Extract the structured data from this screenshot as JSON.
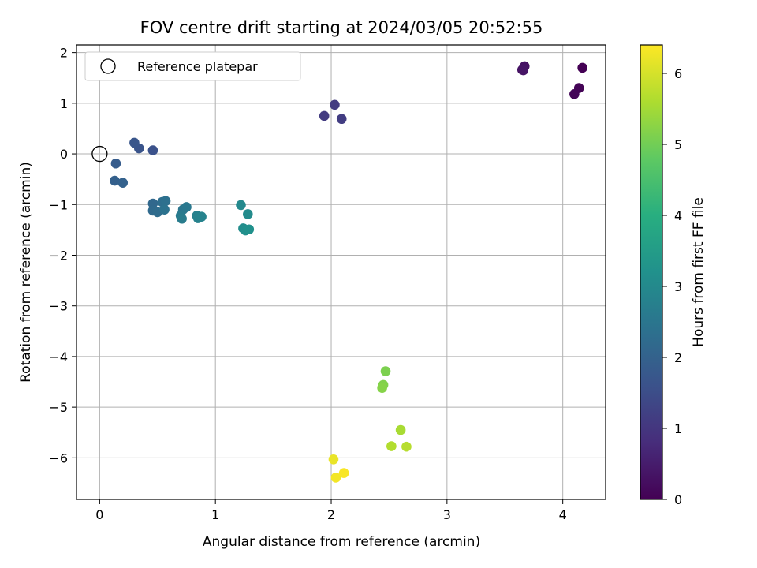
{
  "chart_data": {
    "type": "scatter",
    "title": "FOV centre drift starting at 2024/03/05 20:52:55",
    "xlabel": "Angular distance from reference (arcmin)",
    "ylabel": "Rotation from reference (arcmin)",
    "colorbar_label": "Hours from first FF file",
    "xlim": [
      -0.2,
      4.37
    ],
    "ylim": [
      -6.82,
      2.15
    ],
    "xticks": [
      0,
      1,
      2,
      3,
      4
    ],
    "yticks": [
      2,
      1,
      0,
      -1,
      -2,
      -3,
      -4,
      -5,
      -6
    ],
    "ytick_labels": [
      "2",
      "1",
      "0",
      "−1",
      "−2",
      "−3",
      "−4",
      "−5",
      "−6"
    ],
    "colorbar_range": [
      0,
      6.4
    ],
    "colorbar_ticks": [
      0,
      1,
      2,
      3,
      4,
      5,
      6
    ],
    "colormap": "viridis",
    "grid": true,
    "legend": {
      "position": "top-left",
      "entries": [
        "Reference platepar"
      ]
    },
    "reference_point": {
      "x": 0,
      "y": 0,
      "label": "Reference platepar"
    },
    "points": [
      {
        "x": 4.17,
        "y": 1.7,
        "hours": 0.0
      },
      {
        "x": 4.14,
        "y": 1.3,
        "hours": 0.05
      },
      {
        "x": 4.1,
        "y": 1.18,
        "hours": 0.08
      },
      {
        "x": 3.67,
        "y": 1.73,
        "hours": 0.3
      },
      {
        "x": 3.65,
        "y": 1.66,
        "hours": 0.33
      },
      {
        "x": 3.66,
        "y": 1.65,
        "hours": 0.35
      },
      {
        "x": 2.03,
        "y": 0.97,
        "hours": 1.1
      },
      {
        "x": 1.94,
        "y": 0.75,
        "hours": 1.12
      },
      {
        "x": 2.09,
        "y": 0.69,
        "hours": 1.15
      },
      {
        "x": 0.46,
        "y": 0.07,
        "hours": 1.6
      },
      {
        "x": 0.34,
        "y": 0.11,
        "hours": 1.65
      },
      {
        "x": 0.3,
        "y": 0.22,
        "hours": 1.7
      },
      {
        "x": 0.14,
        "y": -0.19,
        "hours": 1.85
      },
      {
        "x": 0.13,
        "y": -0.53,
        "hours": 1.95
      },
      {
        "x": 0.2,
        "y": -0.57,
        "hours": 2.0
      },
      {
        "x": 0.46,
        "y": -0.98,
        "hours": 2.15
      },
      {
        "x": 0.46,
        "y": -1.12,
        "hours": 2.2
      },
      {
        "x": 0.5,
        "y": -1.15,
        "hours": 2.25
      },
      {
        "x": 0.54,
        "y": -0.95,
        "hours": 2.3
      },
      {
        "x": 0.57,
        "y": -0.93,
        "hours": 2.35
      },
      {
        "x": 0.56,
        "y": -1.1,
        "hours": 2.4
      },
      {
        "x": 0.72,
        "y": -1.1,
        "hours": 2.5
      },
      {
        "x": 0.75,
        "y": -1.05,
        "hours": 2.55
      },
      {
        "x": 0.7,
        "y": -1.22,
        "hours": 2.6
      },
      {
        "x": 0.71,
        "y": -1.28,
        "hours": 2.65
      },
      {
        "x": 0.84,
        "y": -1.22,
        "hours": 2.75
      },
      {
        "x": 0.85,
        "y": -1.27,
        "hours": 2.8
      },
      {
        "x": 0.88,
        "y": -1.24,
        "hours": 2.85
      },
      {
        "x": 1.22,
        "y": -1.01,
        "hours": 3.0
      },
      {
        "x": 1.28,
        "y": -1.19,
        "hours": 3.05
      },
      {
        "x": 1.24,
        "y": -1.47,
        "hours": 3.1
      },
      {
        "x": 1.26,
        "y": -1.51,
        "hours": 3.15
      },
      {
        "x": 1.29,
        "y": -1.49,
        "hours": 3.2
      },
      {
        "x": 2.47,
        "y": -4.29,
        "hours": 5.1
      },
      {
        "x": 2.45,
        "y": -4.56,
        "hours": 5.15
      },
      {
        "x": 2.44,
        "y": -4.62,
        "hours": 5.2
      },
      {
        "x": 2.6,
        "y": -5.45,
        "hours": 5.55
      },
      {
        "x": 2.52,
        "y": -5.77,
        "hours": 5.65
      },
      {
        "x": 2.65,
        "y": -5.78,
        "hours": 5.7
      },
      {
        "x": 2.02,
        "y": -6.03,
        "hours": 6.2
      },
      {
        "x": 2.04,
        "y": -6.39,
        "hours": 6.3
      },
      {
        "x": 2.11,
        "y": -6.3,
        "hours": 6.35
      }
    ]
  }
}
